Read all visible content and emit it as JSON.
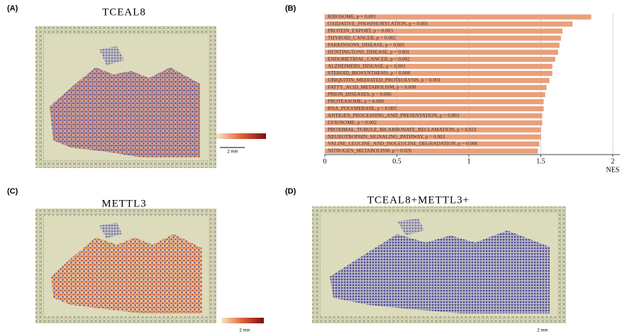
{
  "panels": {
    "a": {
      "label": "(A)",
      "title": "TCEAL8",
      "scale_bar": "2 mm"
    },
    "c": {
      "label": "(C)",
      "title": "METTL3",
      "scale_bar": "2 mm"
    },
    "d": {
      "label": "(D)",
      "title": "TCEAL8+METTL3+",
      "scale_bar": "2 mm"
    }
  },
  "chart_data": {
    "type": "bar",
    "orientation": "horizontal",
    "label": "(B)",
    "categories": [
      "RIBOSOME, p = 0.001",
      "OXIDATIVE_PHOSPHORYLATION, p = 0.001",
      "PROTEIN_EXPORT, p = 0.003",
      "THYROID_CANCER, p = 0.002",
      "PARKINSONS_DISEASE, p = 0.001",
      "HUNTINGTONS_DISEASE, p = 0.001",
      "ENDOMETRIAL_CANCER, p = 0.002",
      "ALZHEIMERS_DISEASE, p = 0.001",
      "STEROID_BIOSYNTHESIS, p = 0.008",
      "UBIQUITIN_MEDIATED_PROTEOLYSIS, p = 0.001",
      "FATTY_ACID_METABOLISM, p = 0.008",
      "PRION_DISEASES, p = 0.006",
      "PROTEASOME, p = 0.008",
      "RNA_POLYMERASE, p = 0.005",
      "ANTIGEN_PROCESSING_AND_PRESENTATION, p = 0.003",
      "LYSOSOME, p = 0.002",
      "PROXIMAL_TUBULE_BICARBONATE_RECLAMATION, p = 0.023",
      "NEUROTROPHIN_SIGNALING_PATHWAY, p = 0.003",
      "VALINE_LEUCINE_AND_ISOLEUCINE_DEGRADATION, p = 0.006",
      "NITROGEN_METABOLISM, p = 0.026"
    ],
    "values": [
      1.85,
      1.72,
      1.65,
      1.64,
      1.63,
      1.62,
      1.6,
      1.58,
      1.58,
      1.56,
      1.54,
      1.53,
      1.52,
      1.52,
      1.51,
      1.51,
      1.5,
      1.5,
      1.49,
      1.48
    ],
    "color": "#e9a07a",
    "xlim": [
      0,
      2.05
    ],
    "xticks": [
      0,
      0.5,
      1,
      1.5,
      2
    ],
    "xlabel": "NES",
    "grid": true
  }
}
